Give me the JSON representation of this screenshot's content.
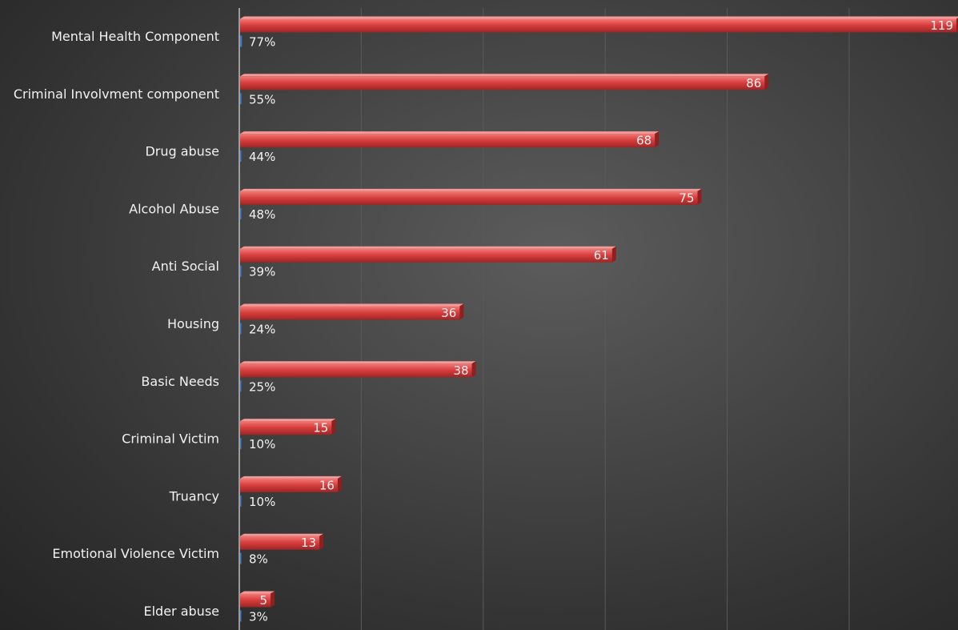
{
  "chart_data": {
    "type": "bar",
    "orientation": "horizontal",
    "categories": [
      "Mental Health Component",
      "Criminal Involvment component",
      "Drug abuse",
      "Alcohol Abuse",
      "Anti Social",
      "Housing",
      "Basic Needs",
      "Criminal Victim",
      "Truancy",
      "Emotional Violence Victim",
      "Elder abuse"
    ],
    "series": [
      {
        "values": [
          119,
          86,
          68,
          75,
          61,
          36,
          38,
          15,
          16,
          13,
          5
        ],
        "labels": [
          "119",
          "86",
          "68",
          "75",
          "61",
          "36",
          "38",
          "15",
          "16",
          "13",
          "5"
        ],
        "color": "#d9403f"
      },
      {
        "values": [
          0.77,
          0.55,
          0.44,
          0.48,
          0.39,
          0.24,
          0.25,
          0.1,
          0.1,
          0.08,
          0.03
        ],
        "labels": [
          "77%",
          "55%",
          "44%",
          "48%",
          "39%",
          "24%",
          "25%",
          "10%",
          "10%",
          "8%",
          "3%"
        ],
        "color": "#3f78c6"
      }
    ],
    "xlim": [
      0,
      120
    ],
    "gridlines": "vertical",
    "legend": "none",
    "title": "",
    "xlabel": "",
    "ylabel": ""
  }
}
